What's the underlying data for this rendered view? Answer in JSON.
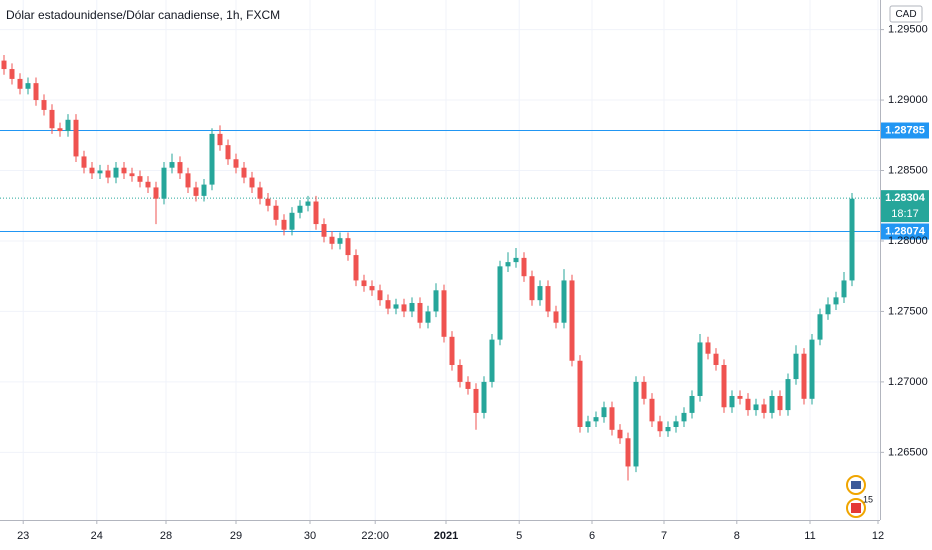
{
  "chart_data": {
    "type": "candlestick",
    "title": "Dólar estadounidense/Dólar canadiense, 1h, FXCM",
    "currency": "CAD",
    "up_color": "#26a69a",
    "down_color": "#ef5350",
    "line_color": "#2196f3",
    "grid": true,
    "xlim": [
      -0.5,
      109.5
    ],
    "xticks": [
      {
        "value": 2.4,
        "label": "23"
      },
      {
        "value": 11.6,
        "label": "24"
      },
      {
        "value": 20.25,
        "label": "28"
      },
      {
        "value": 29,
        "label": "29"
      },
      {
        "value": 38.25,
        "label": "30"
      },
      {
        "value": 46.4,
        "label": "22:00"
      },
      {
        "value": 55.25,
        "label": "2021"
      },
      {
        "value": 64.4,
        "label": "5"
      },
      {
        "value": 73.5,
        "label": "6"
      },
      {
        "value": 82.5,
        "label": "7"
      },
      {
        "value": 91.6,
        "label": "8"
      },
      {
        "value": 100.75,
        "label": "11"
      },
      {
        "value": 109.25,
        "label": "12"
      }
    ],
    "ylim": [
      1.2602,
      1.2971
    ],
    "yticks": [
      {
        "value": 1.295,
        "label": "1.29500"
      },
      {
        "value": 1.29,
        "label": "1.29000"
      },
      {
        "value": 1.285,
        "label": "1.28500"
      },
      {
        "value": 1.28,
        "label": "1.28000"
      },
      {
        "value": 1.275,
        "label": "1.27500"
      },
      {
        "value": 1.27,
        "label": "1.27000"
      },
      {
        "value": 1.265,
        "label": "1.26500"
      }
    ],
    "price_lines": [
      1.28785,
      1.28074
    ],
    "last_price": 1.28304,
    "countdown": "18:17",
    "event_count": "15",
    "open": [
      1.2928,
      1.2922,
      1.2915,
      1.2908,
      1.2912,
      1.29,
      1.2893,
      1.288,
      1.2878,
      1.2886,
      1.286,
      1.2852,
      1.2848,
      1.285,
      1.2845,
      1.2852,
      1.2848,
      1.2846,
      1.2842,
      1.2838,
      1.283,
      1.2852,
      1.2856,
      1.2848,
      1.2838,
      1.2832,
      1.284,
      1.2876,
      1.2868,
      1.2858,
      1.2852,
      1.2845,
      1.2838,
      1.283,
      1.2825,
      1.2815,
      1.2808,
      1.282,
      1.2825,
      1.2828,
      1.2812,
      1.2803,
      1.2798,
      1.2802,
      1.279,
      1.2772,
      1.2768,
      1.2765,
      1.2758,
      1.2752,
      1.2755,
      1.275,
      1.2756,
      1.2742,
      1.275,
      1.2765,
      1.2732,
      1.2712,
      1.27,
      1.2695,
      1.2678,
      1.27,
      1.273,
      1.2782,
      1.2785,
      1.2788,
      1.2775,
      1.2758,
      1.2768,
      1.275,
      1.2742,
      1.2772,
      1.2715,
      1.2668,
      1.2672,
      1.2675,
      1.2682,
      1.2666,
      1.266,
      1.264,
      1.27,
      1.2688,
      1.2672,
      1.2665,
      1.2668,
      1.2672,
      1.2678,
      1.269,
      1.2728,
      1.272,
      1.2712,
      1.2682,
      1.269,
      1.2688,
      1.268,
      1.2684,
      1.2678,
      1.269,
      1.268,
      1.2702,
      1.272,
      1.2688,
      1.273,
      1.2748,
      1.2755,
      1.276,
      1.2772
    ],
    "high": [
      1.2932,
      1.2926,
      1.2919,
      1.2916,
      1.2916,
      1.2904,
      1.2897,
      1.2884,
      1.289,
      1.289,
      1.2864,
      1.2856,
      1.2854,
      1.2854,
      1.2856,
      1.2856,
      1.2852,
      1.285,
      1.2846,
      1.2842,
      1.2856,
      1.2862,
      1.286,
      1.2852,
      1.2842,
      1.2844,
      1.288,
      1.2882,
      1.2872,
      1.2862,
      1.2856,
      1.2849,
      1.2842,
      1.2834,
      1.2829,
      1.2819,
      1.2824,
      1.2829,
      1.2832,
      1.2832,
      1.2816,
      1.2807,
      1.2806,
      1.2806,
      1.2794,
      1.2776,
      1.2772,
      1.2769,
      1.2762,
      1.2759,
      1.2759,
      1.276,
      1.276,
      1.2754,
      1.277,
      1.2769,
      1.2736,
      1.2716,
      1.2704,
      1.2699,
      1.2704,
      1.2734,
      1.2786,
      1.2792,
      1.2795,
      1.2792,
      1.2779,
      1.2772,
      1.2772,
      1.2754,
      1.278,
      1.2776,
      1.2719,
      1.2676,
      1.2679,
      1.2686,
      1.2686,
      1.267,
      1.2664,
      1.2704,
      1.2704,
      1.2692,
      1.2676,
      1.2672,
      1.2676,
      1.2682,
      1.2694,
      1.2734,
      1.2732,
      1.2724,
      1.2716,
      1.2694,
      1.2694,
      1.2692,
      1.2688,
      1.2688,
      1.2694,
      1.2694,
      1.2706,
      1.2726,
      1.2724,
      1.2734,
      1.2752,
      1.276,
      1.2764,
      1.2778,
      1.2834
    ],
    "low": [
      1.2918,
      1.2911,
      1.2904,
      1.2904,
      1.2896,
      1.2889,
      1.2876,
      1.2874,
      1.2874,
      1.2856,
      1.2848,
      1.2844,
      1.2844,
      1.2841,
      1.2841,
      1.2844,
      1.2842,
      1.2838,
      1.2834,
      1.2812,
      1.2826,
      1.2848,
      1.2844,
      1.2834,
      1.2828,
      1.2828,
      1.2836,
      1.2864,
      1.2854,
      1.2848,
      1.2841,
      1.2834,
      1.2826,
      1.2821,
      1.2811,
      1.2804,
      1.2804,
      1.2816,
      1.2821,
      1.2808,
      1.2799,
      1.2794,
      1.2794,
      1.2786,
      1.2768,
      1.2764,
      1.2761,
      1.2754,
      1.2748,
      1.2748,
      1.2746,
      1.2746,
      1.2738,
      1.2738,
      1.2746,
      1.2728,
      1.2708,
      1.2696,
      1.2691,
      1.2666,
      1.2674,
      1.2696,
      1.2726,
      1.2778,
      1.2781,
      1.2771,
      1.2754,
      1.2754,
      1.2746,
      1.2738,
      1.2738,
      1.2711,
      1.2664,
      1.2664,
      1.2668,
      1.2671,
      1.2662,
      1.2656,
      1.263,
      1.2636,
      1.2684,
      1.2668,
      1.2661,
      1.2661,
      1.2664,
      1.2668,
      1.2674,
      1.2686,
      1.2716,
      1.2708,
      1.2678,
      1.2678,
      1.2684,
      1.2676,
      1.2676,
      1.2674,
      1.2674,
      1.2676,
      1.2676,
      1.2698,
      1.2684,
      1.2684,
      1.2726,
      1.2744,
      1.2751,
      1.2756,
      1.2768
    ],
    "close": [
      1.2922,
      1.2915,
      1.2908,
      1.2912,
      1.29,
      1.2893,
      1.288,
      1.2878,
      1.2886,
      1.286,
      1.2852,
      1.2848,
      1.285,
      1.2845,
      1.2852,
      1.2848,
      1.2846,
      1.2842,
      1.2838,
      1.283,
      1.2852,
      1.2856,
      1.2848,
      1.2838,
      1.2832,
      1.284,
      1.2876,
      1.2868,
      1.2858,
      1.2852,
      1.2845,
      1.2838,
      1.283,
      1.2825,
      1.2815,
      1.2808,
      1.282,
      1.2825,
      1.2828,
      1.2812,
      1.2803,
      1.2798,
      1.2802,
      1.279,
      1.2772,
      1.2768,
      1.2765,
      1.2758,
      1.2752,
      1.2755,
      1.275,
      1.2756,
      1.2742,
      1.275,
      1.2765,
      1.2732,
      1.2712,
      1.27,
      1.2695,
      1.2678,
      1.27,
      1.273,
      1.2782,
      1.2785,
      1.2788,
      1.2775,
      1.2758,
      1.2768,
      1.275,
      1.2742,
      1.2772,
      1.2715,
      1.2668,
      1.2672,
      1.2675,
      1.2682,
      1.2666,
      1.266,
      1.264,
      1.27,
      1.2688,
      1.2672,
      1.2665,
      1.2668,
      1.2672,
      1.2678,
      1.269,
      1.2728,
      1.272,
      1.2712,
      1.2682,
      1.269,
      1.2688,
      1.268,
      1.2684,
      1.2678,
      1.269,
      1.268,
      1.2702,
      1.272,
      1.2688,
      1.273,
      1.2748,
      1.2755,
      1.276,
      1.2772,
      1.283
    ]
  }
}
